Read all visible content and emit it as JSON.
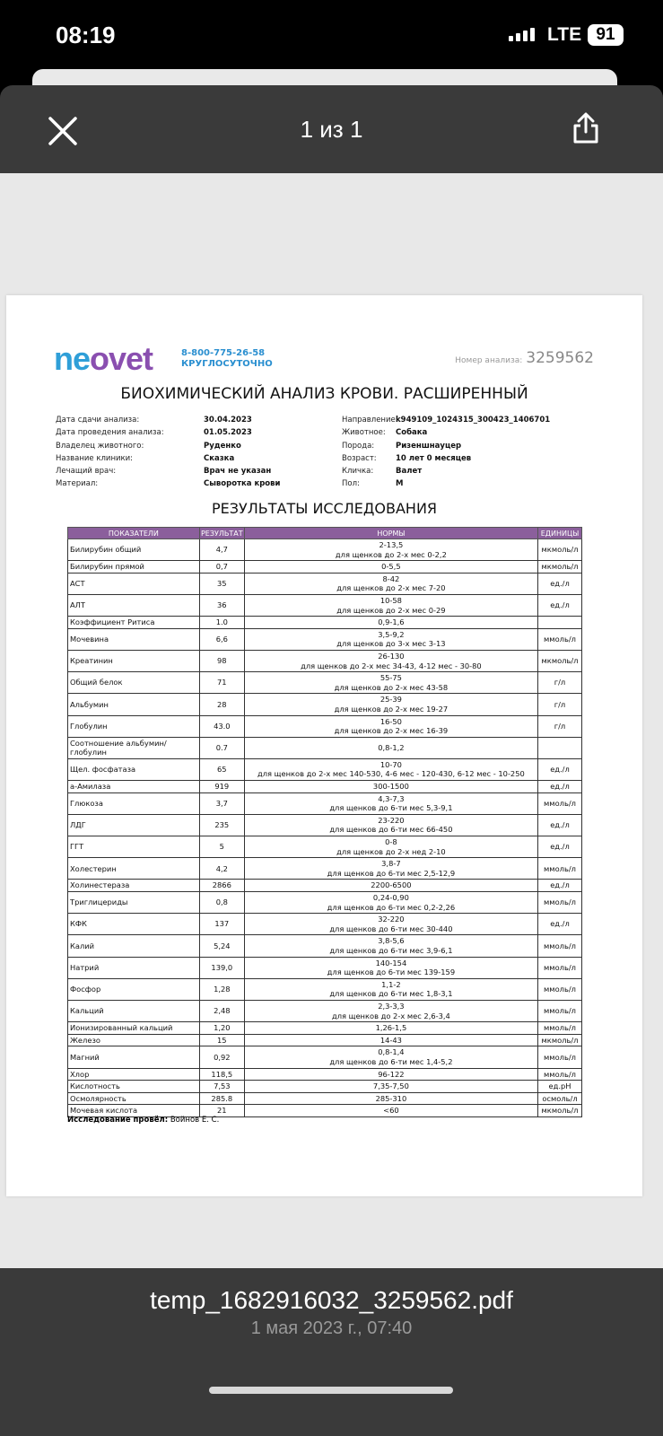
{
  "status_bar": {
    "time": "08:19",
    "network": "LTE",
    "battery": "91"
  },
  "toolbar": {
    "page_indicator": "1 из 1",
    "close_icon": "close-icon",
    "share_icon": "share-icon"
  },
  "document": {
    "logo": "neovet",
    "phone": "8-800-775-26-58",
    "hours": "КРУГЛОСУТОЧНО",
    "analysis_number_label": "Номер анализа:",
    "analysis_number": "3259562",
    "title": "БИОХИМИЧЕСКИЙ АНАЛИЗ КРОВИ. РАСШИРЕННЫЙ",
    "meta_left": [
      {
        "k": "Дата сдачи анализа:",
        "v": "30.04.2023"
      },
      {
        "k": "Дата проведения анализа:",
        "v": "01.05.2023"
      },
      {
        "k": "Владелец животного:",
        "v": "Руденко"
      },
      {
        "k": "Название клиники:",
        "v": "Сказка"
      },
      {
        "k": "Лечащий врач:",
        "v": "Врач не указан"
      },
      {
        "k": "Материал:",
        "v": "Сыворотка крови"
      }
    ],
    "meta_right": [
      {
        "k": "Направление:",
        "v": "k949109_1024315_300423_1406701"
      },
      {
        "k": "Животное:",
        "v": "Собака"
      },
      {
        "k": "Порода:",
        "v": "Ризеншнауцер"
      },
      {
        "k": "Возраст:",
        "v": "10 лет 0 месяцев"
      },
      {
        "k": "Кличка:",
        "v": "Валет"
      },
      {
        "k": "Пол:",
        "v": "М"
      }
    ],
    "results_title": "РЕЗУЛЬТАТЫ ИССЛЕДОВАНИЯ",
    "columns": [
      "ПОКАЗАТЕЛИ",
      "РЕЗУЛЬТАТ",
      "НОРМЫ",
      "ЕДИНИЦЫ"
    ],
    "rows": [
      [
        "Билирубин общий",
        "4,7",
        "2-13,5",
        "для щенков до 2-х мес 0-2,2",
        "мкмоль/л"
      ],
      [
        "Билирубин прямой",
        "0,7",
        "0-5,5",
        "",
        "мкмоль/л"
      ],
      [
        "АСТ",
        "35",
        "8-42",
        "для щенков до 2-х мес 7-20",
        "ед./л"
      ],
      [
        "АЛТ",
        "36",
        "10-58",
        "для щенков до 2-х мес 0-29",
        "ед./л"
      ],
      [
        "Коэффициент Ритиса",
        "1.0",
        "0,9-1,6",
        "",
        ""
      ],
      [
        "Мочевина",
        "6,6",
        "3,5-9,2",
        "для щенков до 3-х мес 3-13",
        "ммоль/л"
      ],
      [
        "Креатинин",
        "98",
        "26-130",
        "для щенков до 2-х мес 34-43, 4-12 мес - 30-80",
        "мкмоль/л"
      ],
      [
        "Общий белок",
        "71",
        "55-75",
        "для щенков до 2-х мес 43-58",
        "г/л"
      ],
      [
        "Альбумин",
        "28",
        "25-39",
        "для щенков до 2-х мес 19-27",
        "г/л"
      ],
      [
        "Глобулин",
        "43.0",
        "16-50",
        "для щенков до 2-х мес 16-39",
        "г/л"
      ],
      [
        "Соотношение альбумин/глобулин",
        "0.7",
        "0,8-1,2",
        "",
        ""
      ],
      [
        "Щел. фосфатаза",
        "65",
        "10-70",
        "для щенков до 2-х мес 140-530, 4-6 мес - 120-430, 6-12 мес - 10-250",
        "ед./л"
      ],
      [
        "а-Амилаза",
        "919",
        "300-1500",
        "",
        "ед./л"
      ],
      [
        "Глюкоза",
        "3,7",
        "4,3-7,3",
        "для щенков до 6-ти мес 5,3-9,1",
        "ммоль/л"
      ],
      [
        "ЛДГ",
        "235",
        "23-220",
        "для щенков до 6-ти мес 66-450",
        "ед./л"
      ],
      [
        "ГГТ",
        "5",
        "0-8",
        "для щенков до 2-х нед 2-10",
        "ед./л"
      ],
      [
        "Холестерин",
        "4,2",
        "3,8-7",
        "для щенков до 6-ти мес 2,5-12,9",
        "ммоль/л"
      ],
      [
        "Холинестераза",
        "2866",
        "2200-6500",
        "",
        "ед./л"
      ],
      [
        "Триглицериды",
        "0,8",
        "0,24-0,90",
        "для щенков до 6-ти мес 0,2-2,26",
        "ммоль/л"
      ],
      [
        "КФК",
        "137",
        "32-220",
        "для щенков до 6-ти мес 30-440",
        "ед./л"
      ],
      [
        "Калий",
        "5,24",
        "3,8-5,6",
        "для щенков до 6-ти мес 3,9-6,1",
        "ммоль/л"
      ],
      [
        "Натрий",
        "139,0",
        "140-154",
        "для щенков до 6-ти мес 139-159",
        "ммоль/л"
      ],
      [
        "Фосфор",
        "1,28",
        "1,1-2",
        "для щенков до 6-ти мес 1,8-3,1",
        "ммоль/л"
      ],
      [
        "Кальций",
        "2,48",
        "2,3-3,3",
        "для щенков до 2-х мес 2,6-3,4",
        "ммоль/л"
      ],
      [
        "Ионизированный кальций",
        "1,20",
        "1,26-1,5",
        "",
        "ммоль/л"
      ],
      [
        "Железо",
        "15",
        "14-43",
        "",
        "мкмоль/л"
      ],
      [
        "Магний",
        "0,92",
        "0,8-1,4",
        "для щенков до 6-ти мес 1,4-5,2",
        "ммоль/л"
      ],
      [
        "Хлор",
        "118,5",
        "96-122",
        "",
        "ммоль/л"
      ],
      [
        "Кислотность",
        "7,53",
        "7,35-7,50",
        "",
        "ед.pH"
      ],
      [
        "Осмолярность",
        "285.8",
        "285-310",
        "",
        "осмоль/л"
      ],
      [
        "Мочевая кислота",
        "21",
        "<60",
        "",
        "мкмоль/л"
      ]
    ],
    "signer_label": "Исследование провёл:",
    "signer": "Войнов Е. С."
  },
  "file": {
    "name": "temp_1682916032_3259562.pdf",
    "date": "1 мая 2023 г., 07:40"
  },
  "colors": {
    "header_purple": "#8b5f9c",
    "logo_blue": "#2f9fd8",
    "logo_purple": "#8a4fb0",
    "toolbar": "#3a3a3a"
  }
}
